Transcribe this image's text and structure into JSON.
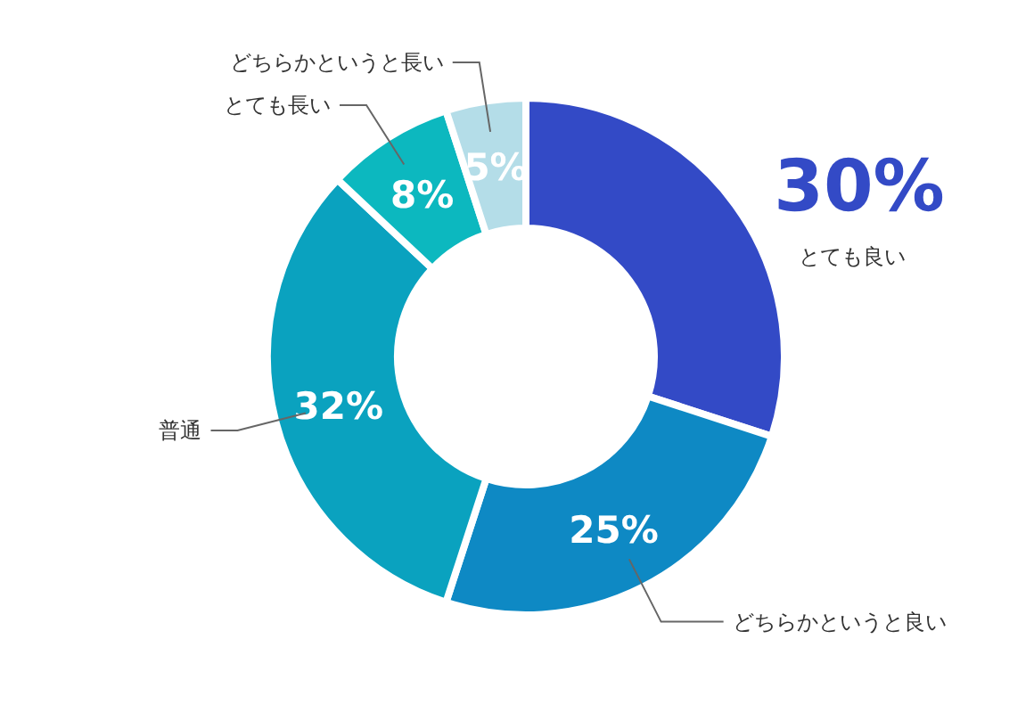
{
  "chart_data": {
    "type": "donut",
    "categories": [
      "とても良い",
      "どちらかというと良い",
      "普通",
      "とても長い",
      "どちらかというと長い"
    ],
    "values": [
      30,
      25,
      32,
      8,
      5
    ],
    "value_labels": [
      "30%",
      "25%",
      "32%",
      "8%",
      "5%"
    ],
    "colors": [
      "#334ac6",
      "#0e89c4",
      "#0aa2bf",
      "#0cb8bf",
      "#b4dde8"
    ]
  }
}
